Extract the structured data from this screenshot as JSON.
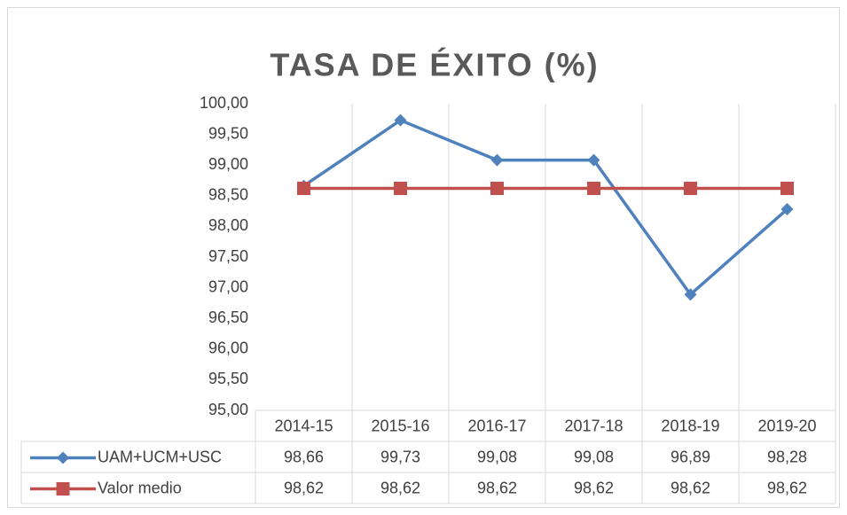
{
  "chart_data": {
    "type": "line",
    "title": "TASA DE ÉXITO (%)",
    "categories": [
      "2014-15",
      "2015-16",
      "2016-17",
      "2017-18",
      "2018-19",
      "2019-20"
    ],
    "series": [
      {
        "name": "UAM+UCM+USC",
        "color": "#4f81bd",
        "marker": "diamond",
        "values": [
          98.66,
          99.73,
          99.08,
          99.08,
          96.89,
          98.28
        ],
        "value_labels": [
          "98,66",
          "99,73",
          "99,08",
          "99,08",
          "96,89",
          "98,28"
        ]
      },
      {
        "name": "Valor medio",
        "color": "#c0504d",
        "marker": "square",
        "values": [
          98.62,
          98.62,
          98.62,
          98.62,
          98.62,
          98.62
        ],
        "value_labels": [
          "98,62",
          "98,62",
          "98,62",
          "98,62",
          "98,62",
          "98,62"
        ]
      }
    ],
    "ylim": [
      95,
      100
    ],
    "yticks": [
      {
        "value": 95,
        "label": "95,00"
      },
      {
        "value": 95.5,
        "label": "95,50"
      },
      {
        "value": 96,
        "label": "96,00"
      },
      {
        "value": 96.5,
        "label": "96,50"
      },
      {
        "value": 97,
        "label": "97,00"
      },
      {
        "value": 97.5,
        "label": "97,50"
      },
      {
        "value": 98,
        "label": "98,00"
      },
      {
        "value": 98.5,
        "label": "98,50"
      },
      {
        "value": 99,
        "label": "99,00"
      },
      {
        "value": 99.5,
        "label": "99,50"
      },
      {
        "value": 100,
        "label": "100,00"
      }
    ],
    "grid": true
  }
}
